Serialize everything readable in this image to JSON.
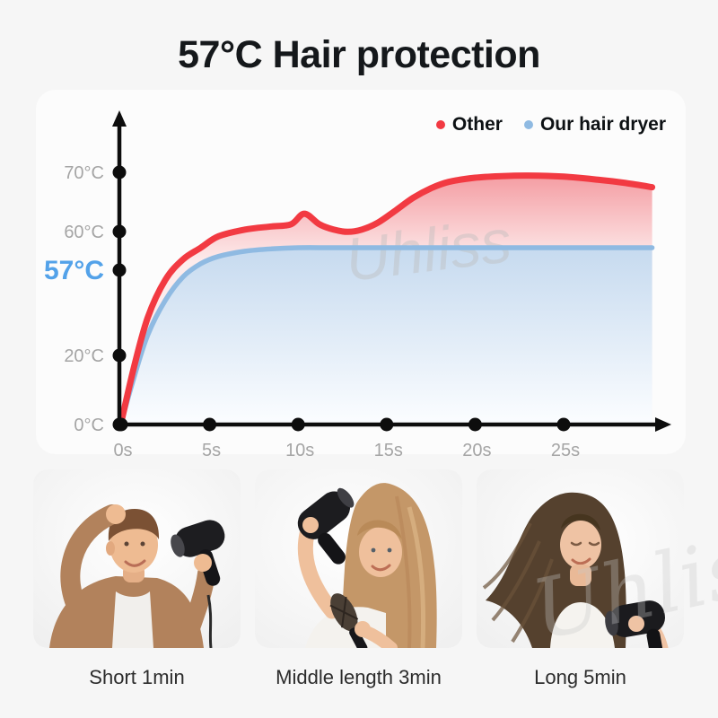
{
  "title": "57°C Hair protection",
  "watermark": "Uhliss",
  "legend": [
    {
      "label": "Other",
      "color": "#f23a42"
    },
    {
      "label": "Our hair dryer",
      "color": "#8fbae2"
    }
  ],
  "chart_data": {
    "type": "area",
    "x_unit": "seconds",
    "y_unit": "°C",
    "x_ticks": [
      "0s",
      "5s",
      "10s",
      "15s",
      "20s",
      "25s"
    ],
    "y_ticks": [
      "70°C",
      "60°C",
      "57°C",
      "20°C",
      "0°C"
    ],
    "highlight_y_tick": "57°C",
    "xlim": [
      0,
      30
    ],
    "ylim": [
      0,
      75
    ],
    "grid": false,
    "legend_position": "top-right",
    "series": [
      {
        "name": "Other",
        "color": "#f23a42",
        "x": [
          0,
          0.7,
          1.5,
          2.5,
          3.5,
          4.5,
          5.5,
          7,
          8.5,
          9.6,
          10.35,
          11.2,
          12,
          12.8,
          13.6,
          14.5,
          15.5,
          16.5,
          17.5,
          18.5,
          20,
          21.5,
          23,
          25,
          27,
          28.5,
          30
        ],
        "values": [
          0,
          16,
          33,
          46,
          53,
          57,
          59,
          60.2,
          60.8,
          61.2,
          63.2,
          61.2,
          60.2,
          59.8,
          60.2,
          61.5,
          63.8,
          66.2,
          68,
          69.2,
          70,
          70.3,
          70.4,
          70.2,
          69.6,
          69,
          68.2
        ]
      },
      {
        "name": "Our hair dryer",
        "color": "#8fbae2",
        "x": [
          0,
          0.7,
          1.5,
          2.5,
          3.5,
          4.5,
          5.5,
          7,
          8.5,
          10,
          12,
          15,
          20,
          25,
          30
        ],
        "values": [
          0,
          13,
          27,
          39,
          47,
          51.5,
          54,
          55.8,
          56.6,
          57,
          57,
          57,
          57,
          57,
          57
        ]
      }
    ]
  },
  "photos": [
    {
      "caption": "Short 1min",
      "description": "man with short hair drying with black hair dryer"
    },
    {
      "caption": "Middle length 3min",
      "description": "woman with medium-length hair using hair dryer and round brush"
    },
    {
      "caption": "Long 5min",
      "description": "woman with long hair using black hair dryer"
    }
  ]
}
